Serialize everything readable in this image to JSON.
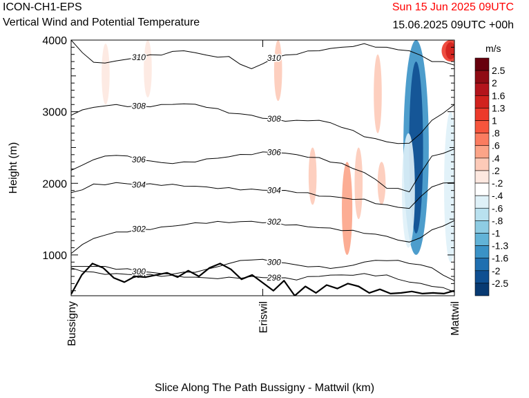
{
  "header": {
    "model": "ICON-CH1-EPS",
    "subtitle": "Vertical Wind and Potential Temperature",
    "valid_time": "Sun 15 Jun 2025 09UTC",
    "run_info": "15.06.2025 09UTC +00h"
  },
  "colorbar": {
    "units": "m/s",
    "levels": [
      "2.5",
      "2",
      "1.6",
      "1.3",
      "1",
      ".8",
      ".6",
      ".4",
      ".2",
      "-.2",
      "-.4",
      "-.6",
      "-.8",
      "-1",
      "-1.3",
      "-1.6",
      "-2",
      "-2.5"
    ],
    "colors": [
      "#67000d",
      "#8f0b14",
      "#b3141c",
      "#d1221e",
      "#ec3a2b",
      "#f6553d",
      "#fb7c60",
      "#fca488",
      "#fdcab8",
      "#fde8e0",
      "#ffffff",
      "#dff1f8",
      "#b9e1ef",
      "#8ecce3",
      "#62b3d7",
      "#3a92c6",
      "#1f6fb0",
      "#0f4f91",
      "#083a72"
    ]
  },
  "chart_data": {
    "type": "contour",
    "xlabel": "Slice Along The Path Bussigny - Mattwil (km)",
    "ylabel": "Height (m)",
    "ylim": [
      430,
      4000
    ],
    "yticks": [
      1000,
      2000,
      3000,
      4000
    ],
    "xtick_labels": [
      "Bussigny",
      "Eriswil",
      "Mattwil"
    ],
    "xtick_positions": [
      0,
      0.5,
      1
    ],
    "isentropes": [
      {
        "label": "298",
        "heights": [
          820,
          760,
          740,
          720,
          700,
          690,
          680,
          690,
          700,
          680,
          650,
          700,
          720,
          740,
          720,
          620,
          560,
          480
        ]
      },
      {
        "label": "300",
        "heights": [
          840,
          840,
          800,
          770,
          740,
          760,
          800,
          880,
          930,
          900,
          860,
          840,
          830,
          900,
          920,
          880,
          820,
          640
        ]
      },
      {
        "label": "302",
        "heights": [
          1020,
          1230,
          1320,
          1360,
          1390,
          1420,
          1440,
          1450,
          1470,
          1460,
          1420,
          1380,
          1340,
          1300,
          1260,
          1180,
          1350,
          1480
        ]
      },
      {
        "label": "304",
        "heights": [
          1870,
          1990,
          2010,
          1980,
          1970,
          1960,
          1950,
          1940,
          1920,
          1900,
          1870,
          1820,
          1800,
          1780,
          1700,
          1650,
          1950,
          2010
        ]
      },
      {
        "label": "306",
        "heights": [
          2180,
          2330,
          2390,
          2330,
          2290,
          2300,
          2340,
          2370,
          2400,
          2430,
          2400,
          2360,
          2280,
          2150,
          1930,
          1880,
          2380,
          2480
        ]
      },
      {
        "label": "308",
        "heights": [
          2950,
          3060,
          3100,
          3080,
          3100,
          3110,
          3060,
          2980,
          2950,
          2900,
          2880,
          2880,
          2780,
          2650,
          2580,
          2560,
          2880,
          3100
        ]
      },
      {
        "label": "310",
        "heights": [
          4000,
          3690,
          3710,
          3760,
          3790,
          3850,
          3790,
          3770,
          3600,
          3750,
          3800,
          3850,
          3900,
          3950,
          3900,
          3850,
          3700,
          3650
        ]
      }
    ],
    "terrain_heights": [
      450,
      720,
      880,
      820,
      680,
      620,
      700,
      690,
      720,
      750,
      690,
      780,
      700,
      820,
      880,
      800,
      660,
      720,
      610,
      500,
      640,
      430,
      560,
      470,
      580,
      530,
      600,
      560,
      470,
      520,
      460,
      470,
      490,
      460,
      470,
      460,
      500
    ],
    "vertical_wind_patches": [
      {
        "x": 0.09,
        "z": [
          3950,
          3100
        ],
        "w": -0.2
      },
      {
        "x": 0.2,
        "z": [
          4000,
          3200
        ],
        "w": -0.2
      },
      {
        "x": 0.54,
        "z": [
          4000,
          3150
        ],
        "w": 0.2
      },
      {
        "x": 0.63,
        "z": [
          2500,
          1700
        ],
        "w": 0.2
      },
      {
        "x": 0.72,
        "z": [
          2300,
          1000
        ],
        "w": 0.4
      },
      {
        "x": 0.75,
        "z": [
          2500,
          1500
        ],
        "w": 0.2
      },
      {
        "x": 0.8,
        "z": [
          3800,
          2700
        ],
        "w": 0.2
      },
      {
        "x": 0.81,
        "z": [
          2300,
          1700
        ],
        "w": 0.2
      },
      {
        "x": 0.9,
        "z": [
          4000,
          1000
        ],
        "w": -1.6
      },
      {
        "x": 0.88,
        "z": [
          2700,
          1100
        ],
        "w": -0.6
      },
      {
        "x": 0.99,
        "z": [
          3000,
          900
        ],
        "w": -0.6
      },
      {
        "x": 0.99,
        "z": [
          4000,
          3700
        ],
        "w": 1.0
      }
    ]
  }
}
